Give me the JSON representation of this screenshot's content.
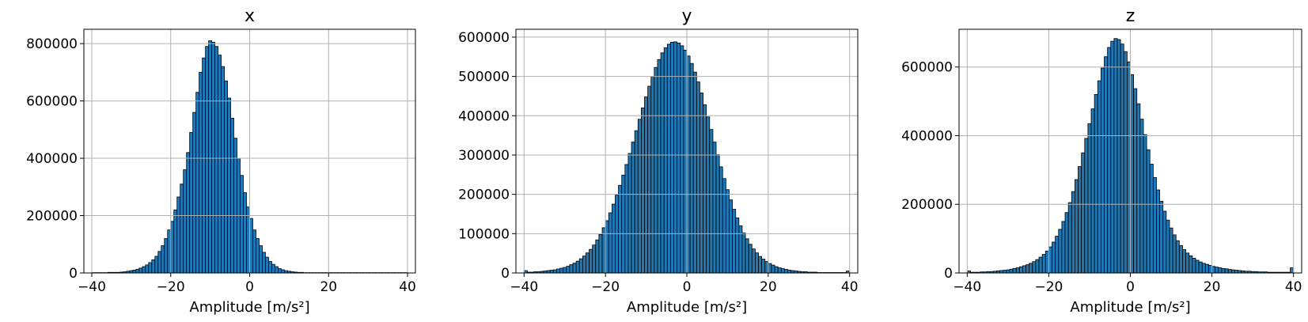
{
  "figure": {
    "colors": {
      "bar_fill": "#1f77b4",
      "bar_edge": "#000000",
      "grid": "#b0b0b0",
      "frame": "#000000"
    },
    "grid": true
  },
  "chart_data": [
    {
      "type": "bar",
      "title": "x",
      "xlabel": "Amplitude [m/s²]",
      "ylabel": "",
      "xlim": [
        -42,
        42
      ],
      "ylim": [
        0,
        850000
      ],
      "xticks": [
        -40,
        -20,
        0,
        20,
        40
      ],
      "xtick_labels": [
        "−40",
        "−20",
        "0",
        "20",
        "40"
      ],
      "yticks": [
        0,
        200000,
        400000,
        600000,
        800000
      ],
      "ytick_labels": [
        "0",
        "200000",
        "400000",
        "600000",
        "800000"
      ],
      "bin_edges": {
        "start": -40,
        "end": 40,
        "count": 100
      },
      "values": [
        1000,
        1000,
        1000,
        1000,
        1000,
        2000,
        2000,
        2000,
        2000,
        3000,
        4000,
        6000,
        8000,
        10000,
        13000,
        17000,
        22000,
        28000,
        36000,
        46000,
        58000,
        75000,
        95000,
        120000,
        150000,
        180000,
        220000,
        265000,
        310000,
        360000,
        420000,
        490000,
        560000,
        630000,
        700000,
        750000,
        790000,
        810000,
        805000,
        790000,
        760000,
        720000,
        670000,
        610000,
        540000,
        470000,
        400000,
        340000,
        280000,
        230000,
        190000,
        150000,
        120000,
        95000,
        72000,
        55000,
        40000,
        30000,
        22000,
        15000,
        11000,
        8000,
        6000,
        4000,
        3000,
        2000,
        2000,
        1000,
        1000,
        1000,
        1000,
        1000,
        1000,
        1000,
        1000,
        1000,
        1000,
        1000,
        1000,
        1000,
        1000,
        1000,
        1000,
        1000,
        1000,
        1000,
        1000,
        1000,
        1000,
        1000,
        1000,
        1000,
        1000,
        1000,
        1000,
        1000,
        1000,
        1000,
        1000,
        1000
      ]
    },
    {
      "type": "bar",
      "title": "y",
      "xlabel": "Amplitude [m/s²]",
      "ylabel": "",
      "xlim": [
        -42,
        42
      ],
      "ylim": [
        0,
        620000
      ],
      "xticks": [
        -40,
        -20,
        0,
        20,
        40
      ],
      "xtick_labels": [
        "−40",
        "−20",
        "0",
        "20",
        "40"
      ],
      "yticks": [
        0,
        100000,
        200000,
        300000,
        400000,
        500000,
        600000
      ],
      "ytick_labels": [
        "0",
        "100000",
        "200000",
        "300000",
        "400000",
        "500000",
        "600000"
      ],
      "bin_edges": {
        "start": -40,
        "end": 40,
        "count": 100
      },
      "values": [
        6000,
        2000,
        2000,
        3000,
        3000,
        4000,
        5000,
        6000,
        7000,
        8000,
        10000,
        12000,
        14000,
        17000,
        21000,
        25000,
        30000,
        36000,
        43000,
        51000,
        60000,
        71000,
        84000,
        98000,
        115000,
        133000,
        153000,
        175000,
        198000,
        223000,
        249000,
        276000,
        304000,
        333000,
        362000,
        391000,
        420000,
        448000,
        475000,
        500000,
        523000,
        543000,
        560000,
        573000,
        582000,
        587000,
        588000,
        585000,
        578000,
        567000,
        552000,
        533000,
        511000,
        486000,
        458000,
        428000,
        397000,
        365000,
        333000,
        301000,
        270000,
        240000,
        212000,
        186000,
        162000,
        140000,
        120000,
        102000,
        87000,
        73000,
        61000,
        51000,
        42000,
        35000,
        29000,
        24000,
        20000,
        16000,
        13000,
        11000,
        9000,
        7000,
        6000,
        5000,
        4000,
        3000,
        3000,
        2000,
        2000,
        2000,
        1000,
        1000,
        1000,
        1000,
        1000,
        1000,
        1000,
        1000,
        1000,
        5000
      ]
    },
    {
      "type": "bar",
      "title": "z",
      "xlabel": "Amplitude [m/s²]",
      "ylabel": "",
      "xlim": [
        -42,
        42
      ],
      "ylim": [
        0,
        710000
      ],
      "xticks": [
        -40,
        -20,
        0,
        20,
        40
      ],
      "xtick_labels": [
        "−40",
        "−20",
        "0",
        "20",
        "40"
      ],
      "yticks": [
        0,
        200000,
        400000,
        600000
      ],
      "ytick_labels": [
        "0",
        "200000",
        "400000",
        "600000"
      ],
      "bin_edges": {
        "start": -40,
        "end": 40,
        "count": 100
      },
      "values": [
        6000,
        2000,
        2000,
        2000,
        3000,
        3000,
        4000,
        4000,
        5000,
        6000,
        7000,
        8000,
        9000,
        11000,
        13000,
        15000,
        18000,
        21000,
        24000,
        28000,
        33000,
        39000,
        46000,
        54000,
        64000,
        76000,
        90000,
        107000,
        127000,
        150000,
        176000,
        205000,
        237000,
        272000,
        310000,
        350000,
        392000,
        435000,
        478000,
        520000,
        560000,
        597000,
        630000,
        657000,
        675000,
        683000,
        680000,
        667000,
        645000,
        615000,
        578000,
        537000,
        493000,
        448000,
        403000,
        359000,
        317000,
        278000,
        242000,
        209000,
        180000,
        154000,
        131000,
        111000,
        94000,
        80000,
        68000,
        58000,
        50000,
        43000,
        37000,
        32000,
        28000,
        25000,
        22000,
        19000,
        17000,
        15000,
        13000,
        12000,
        10000,
        9000,
        8000,
        7000,
        6000,
        5000,
        5000,
        4000,
        4000,
        3000,
        3000,
        3000,
        2000,
        2000,
        2000,
        2000,
        2000,
        2000,
        2000,
        15000
      ]
    }
  ]
}
